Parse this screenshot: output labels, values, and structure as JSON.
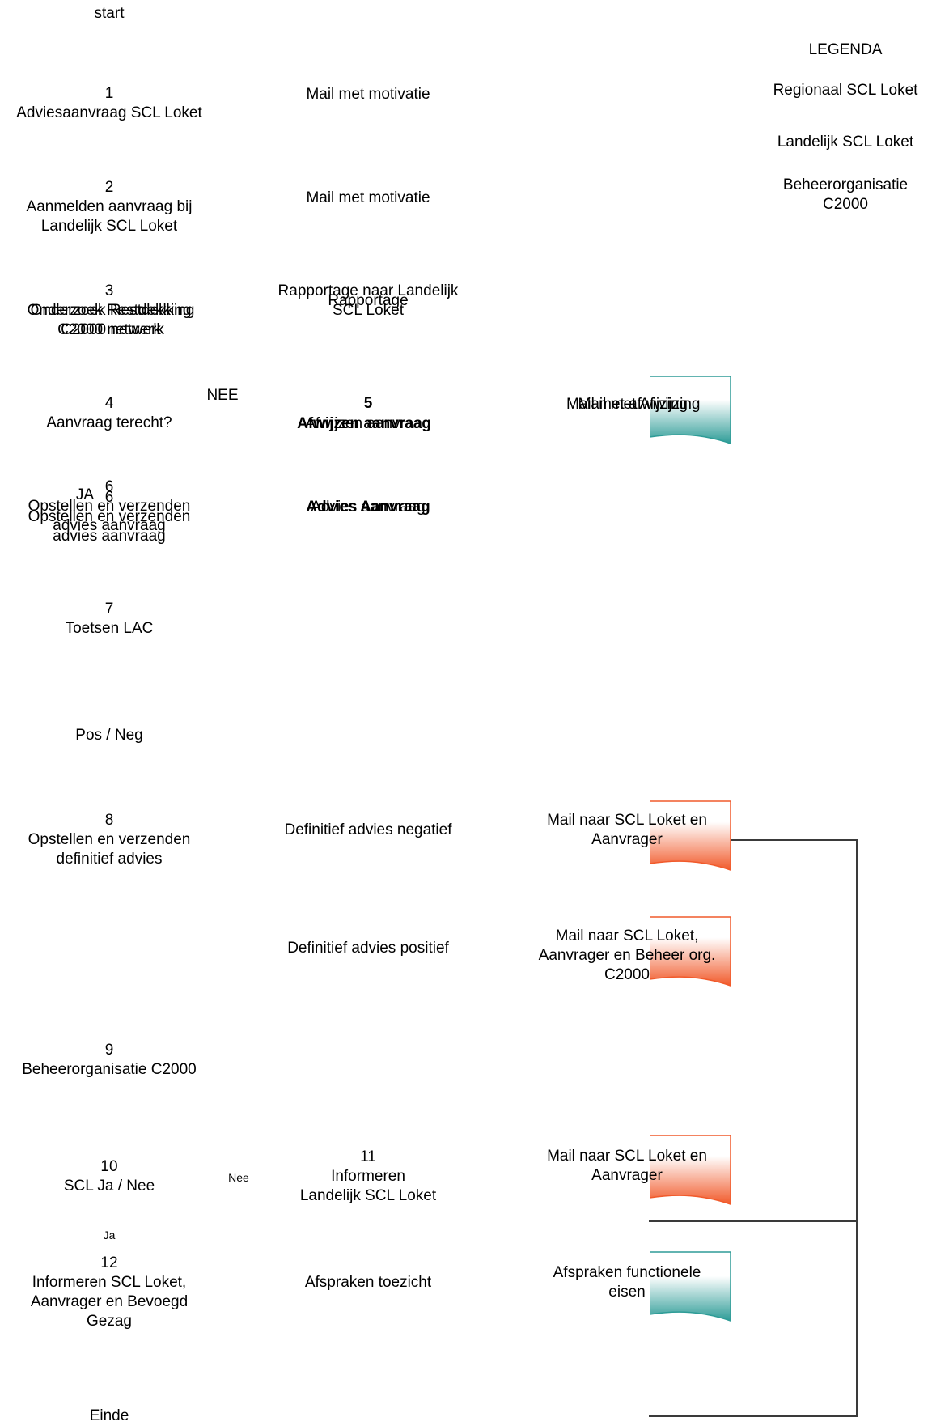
{
  "colors": {
    "doc_teal": "#2e9c97",
    "doc_orange": "#f15a2b",
    "connector": "#3a3a3a"
  },
  "start": "start",
  "end": "Einde",
  "legend": {
    "title": "LEGENDA",
    "items": [
      "Regionaal SCL Loket",
      "Landelijk SCL Loket",
      "Beheerorganisatie\nC2000"
    ]
  },
  "steps": {
    "s1": "1\nAdviesaanvraag SCL Loket",
    "s2": "2\nAanmelden aanvraag bij\nLandelijk SCL Loket",
    "s3": "3",
    "s3_a": "Onderzoek Restdekking\nC2000 netwerk",
    "s3_b": "Onderzoek Restdekking\nC2000 netwerk",
    "s4": "4\nAanvraag terecht?",
    "s5": "5",
    "s5_a": "Afwijzen aanvraag",
    "s5_b": "Afwijzen aanvraag",
    "s6_a": "6\nOpstellen en verzenden\nadvies aanvraag",
    "s6_b": "6\nOpstellen en verzenden\nadvies aanvraag",
    "s7": "7\nToetsen LAC",
    "pos_neg": "Pos / Neg",
    "s8": "8\nOpstellen en verzenden\ndefinitief advies",
    "s9": "9\nBeheerorganisatie C2000",
    "s10": "10\nSCL Ja / Nee",
    "s11": "11\nInformeren\nLandelijk SCL Loket",
    "s12": "12\nInformeren SCL Loket,\nAanvrager en Bevoegd\nGezag"
  },
  "branches": {
    "nee_upper": "NEE",
    "ja_upper": "JA",
    "nee_lower": "Nee",
    "ja_lower": "Ja"
  },
  "outputs": {
    "mail1": "Mail met motivatie",
    "mail2": "Mail met motivatie",
    "rapportage_a": "Rapportage naar Landelijk\nSCL Loket",
    "rapportage_b": "Rapportage",
    "advies_a": "Advies aanvraag",
    "advies_b": "Advies Aanvraag",
    "def_neg": "Definitief advies negatief",
    "def_pos": "Definitief advies positief",
    "afspraken_toezicht": "Afspraken toezicht"
  },
  "documents": {
    "afwijzing_a": "Mail met afwijzing",
    "afwijzing_b": "Mail met Afwijzing",
    "mail_neg": "Mail naar SCL Loket en\nAanvrager",
    "mail_pos": "Mail naar SCL Loket,\nAanvrager en Beheer org.\nC2000",
    "mail_11": "Mail naar SCL Loket en\nAanvrager",
    "afspraken_func": "Afspraken functionele\neisen"
  }
}
